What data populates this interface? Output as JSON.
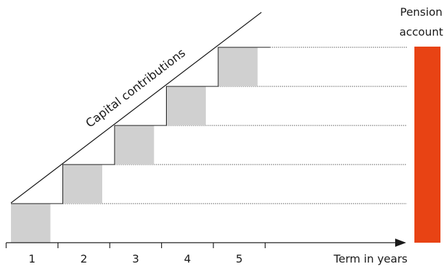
{
  "diagram": {
    "type": "staircase",
    "diagonal_label": "Capital contributions",
    "pension_label_line1": "Pension",
    "pension_label_line2": "account",
    "x_axis_label": "Term in years",
    "tick_labels": [
      "1",
      "2",
      "3",
      "4",
      "5"
    ],
    "contribution_steps": [
      1,
      2,
      3,
      4,
      5
    ],
    "colors": {
      "contribution_block": "#d0d0d0",
      "pension_bar": "#e84314",
      "lines": "#1a1a1a",
      "dotted": "#555555"
    }
  }
}
